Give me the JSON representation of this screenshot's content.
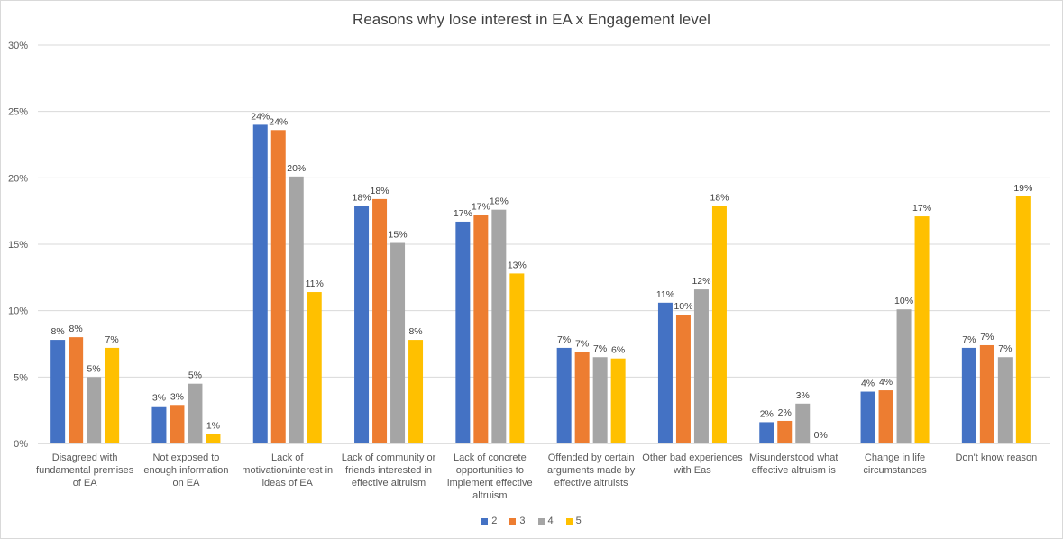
{
  "chart_data": {
    "type": "bar",
    "title": "Reasons why lose interest in  EA x Engagement level",
    "xlabel": "",
    "ylabel": "",
    "ylim": [
      0,
      30
    ],
    "yticks": [
      "0%",
      "5%",
      "10%",
      "15%",
      "20%",
      "25%",
      "30%"
    ],
    "categories": [
      [
        "Disagreed with",
        "fundamental premises",
        "of EA"
      ],
      [
        "Not exposed to",
        "enough information",
        "on EA"
      ],
      [
        "Lack of",
        "motivation/interest in",
        "ideas of EA"
      ],
      [
        "Lack of community or",
        "friends interested in",
        "effective altruism"
      ],
      [
        "Lack of concrete",
        "opportunities to",
        "implement effective",
        "altruism"
      ],
      [
        "Offended by certain",
        "arguments made by",
        "effective altruists"
      ],
      [
        "Other bad experiences",
        "with Eas"
      ],
      [
        "Misunderstood what",
        "effective altruism is"
      ],
      [
        "Change in life",
        "circumstances"
      ],
      [
        "Don't know reason"
      ]
    ],
    "series": [
      {
        "name": "2",
        "color": "#4472c4",
        "values": [
          7.8,
          2.8,
          24.0,
          17.9,
          16.7,
          7.2,
          10.6,
          1.6,
          3.9,
          7.2
        ],
        "labels": [
          "8%",
          "3%",
          "24%",
          "18%",
          "17%",
          "7%",
          "11%",
          "2%",
          "4%",
          "7%"
        ]
      },
      {
        "name": "3",
        "color": "#ed7d31",
        "values": [
          8.0,
          2.9,
          23.6,
          18.4,
          17.2,
          6.9,
          9.7,
          1.7,
          4.0,
          7.4
        ],
        "labels": [
          "8%",
          "3%",
          "24%",
          "18%",
          "17%",
          "7%",
          "10%",
          "2%",
          "4%",
          "7%"
        ]
      },
      {
        "name": "4",
        "color": "#a5a5a5",
        "values": [
          5.0,
          4.5,
          20.1,
          15.1,
          17.6,
          6.5,
          11.6,
          3.0,
          10.1,
          6.5
        ],
        "labels": [
          "5%",
          "5%",
          "20%",
          "15%",
          "18%",
          "7%",
          "12%",
          "3%",
          "10%",
          "7%"
        ]
      },
      {
        "name": "5",
        "color": "#ffc000",
        "values": [
          7.2,
          0.7,
          11.4,
          7.8,
          12.8,
          6.4,
          17.9,
          0.0,
          17.1,
          18.6
        ],
        "labels": [
          "7%",
          "1%",
          "11%",
          "8%",
          "13%",
          "6%",
          "18%",
          "0%",
          "17%",
          "19%"
        ]
      }
    ],
    "legend_position": "bottom-center",
    "grid": true
  }
}
